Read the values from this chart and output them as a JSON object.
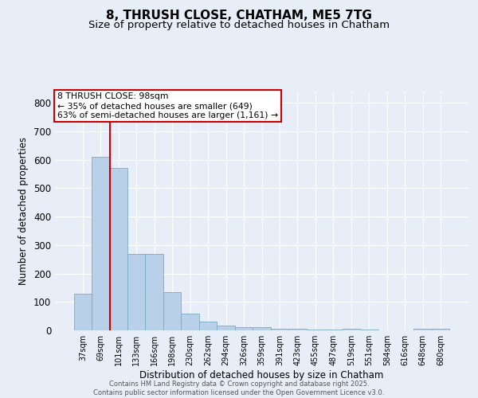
{
  "title1": "8, THRUSH CLOSE, CHATHAM, ME5 7TG",
  "title2": "Size of property relative to detached houses in Chatham",
  "xlabel": "Distribution of detached houses by size in Chatham",
  "ylabel": "Number of detached properties",
  "categories": [
    "37sqm",
    "69sqm",
    "101sqm",
    "133sqm",
    "166sqm",
    "198sqm",
    "230sqm",
    "262sqm",
    "294sqm",
    "326sqm",
    "359sqm",
    "391sqm",
    "423sqm",
    "455sqm",
    "487sqm",
    "519sqm",
    "551sqm",
    "584sqm",
    "616sqm",
    "648sqm",
    "680sqm"
  ],
  "values": [
    130,
    610,
    570,
    270,
    270,
    135,
    60,
    30,
    17,
    10,
    10,
    5,
    5,
    2,
    2,
    5,
    2,
    1,
    1,
    5,
    6
  ],
  "bar_color": "#b8d0e8",
  "bar_edge_color": "#7aaac8",
  "vline_x": 1.5,
  "vline_color": "#cc0000",
  "annotation_text": "8 THRUSH CLOSE: 98sqm\n← 35% of detached houses are smaller (649)\n63% of semi-detached houses are larger (1,161) →",
  "annotation_box_color": "#ffffff",
  "annotation_box_edge": "#cc0000",
  "ylim": [
    0,
    840
  ],
  "yticks": [
    0,
    100,
    200,
    300,
    400,
    500,
    600,
    700,
    800
  ],
  "footer1": "Contains HM Land Registry data © Crown copyright and database right 2025.",
  "footer2": "Contains public sector information licensed under the Open Government Licence v3.0.",
  "background_color": "#e8eef7",
  "grid_color": "#ffffff",
  "title_fontsize": 11,
  "subtitle_fontsize": 9.5
}
